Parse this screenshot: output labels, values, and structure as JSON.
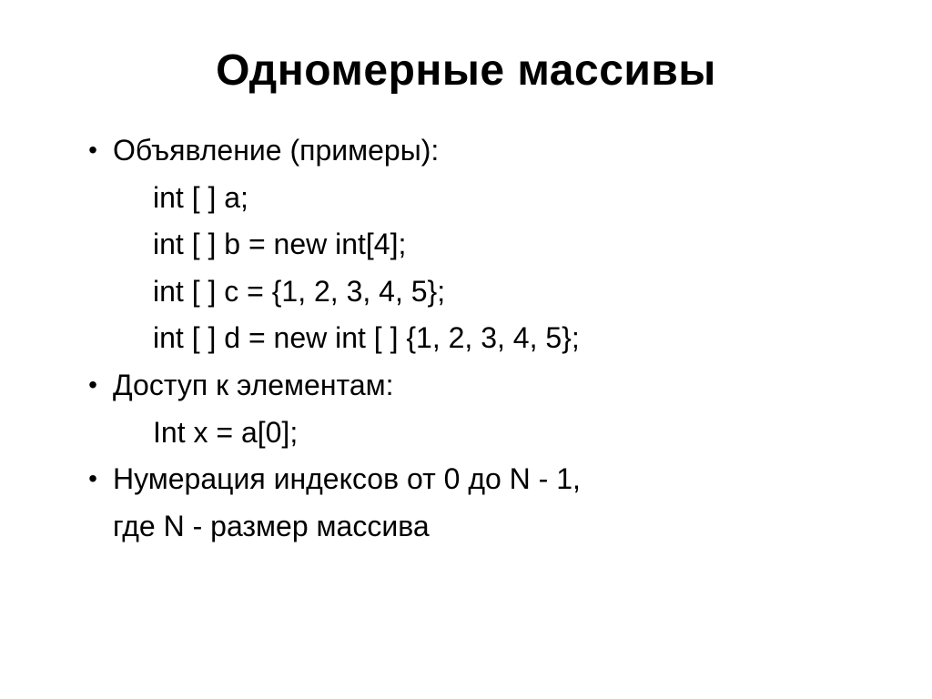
{
  "slide": {
    "title": "Одномерные массивы",
    "bullets": [
      {
        "label": "Объявление (примеры):",
        "lines": [
          "int [ ] a;",
          "int [ ] b = new int[4];",
          "int [ ] c = {1, 2, 3, 4, 5};",
          "int [ ] d = new int [ ] {1, 2, 3, 4, 5};"
        ],
        "sublines": []
      },
      {
        "label": "Доступ к элементам:",
        "lines": [
          "Int x = a[0];"
        ],
        "sublines": []
      },
      {
        "label": "Нумерация индексов от 0 до N - 1,",
        "lines": [],
        "sublines": [
          "где N - размер массива"
        ]
      }
    ]
  },
  "style": {
    "background_color": "#ffffff",
    "text_color": "#000000",
    "title_fontsize": 48,
    "title_fontweight": 700,
    "body_fontsize": 32,
    "bullet_char": "•",
    "font_family": "Arial",
    "slide_width": 1024,
    "slide_height": 768
  }
}
